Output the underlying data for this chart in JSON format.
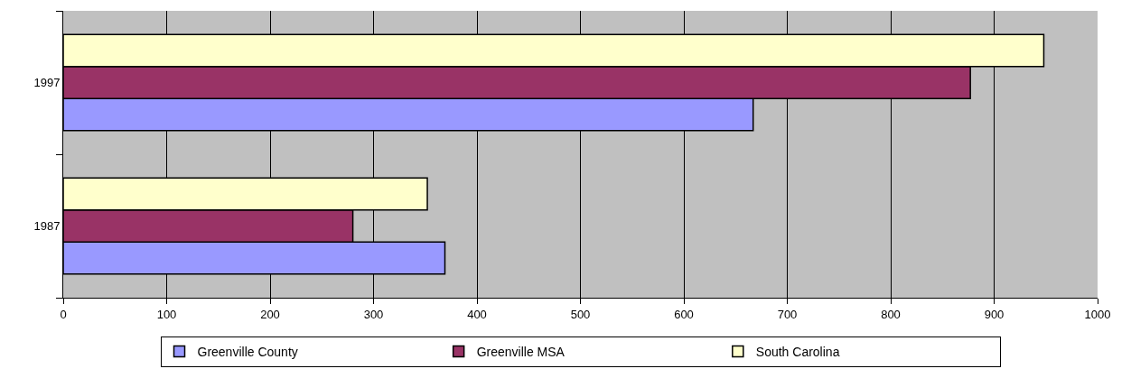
{
  "chart_data": {
    "type": "bar",
    "orientation": "horizontal",
    "categories": [
      "1997",
      "1987"
    ],
    "series": [
      {
        "name": "Greenville County",
        "color": "#9999ff",
        "values": [
          667,
          369
        ]
      },
      {
        "name": "Greenville MSA",
        "color": "#993366",
        "values": [
          877,
          280
        ]
      },
      {
        "name": "South Carolina",
        "color": "#ffffcc",
        "values": [
          948,
          352
        ]
      }
    ],
    "xlim": [
      0,
      1000
    ],
    "xticks": [
      0,
      100,
      200,
      300,
      400,
      500,
      600,
      700,
      800,
      900,
      1000
    ],
    "grid": "x",
    "legend": "bottom"
  }
}
